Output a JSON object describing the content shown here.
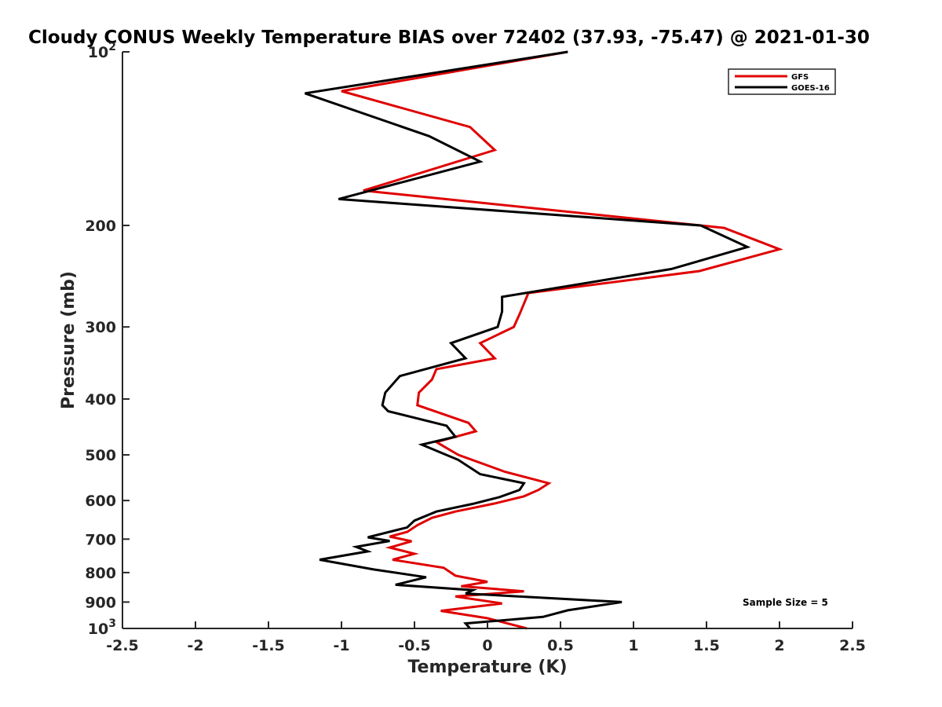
{
  "chart_data": {
    "type": "line",
    "title": "Cloudy CONUS Weekly Temperature BIAS over 72402 (37.93, -75.47) @ 2021-01-30",
    "xlabel": "Temperature (K)",
    "ylabel": "Pressure (mb)",
    "xlim": [
      -2.5,
      2.5
    ],
    "ylim": [
      100,
      1000
    ],
    "y_scale": "log",
    "y_reversed": true,
    "grid": false,
    "legend_position": "top-right",
    "x_ticks": [
      -2.5,
      -2,
      -1.5,
      -1,
      -0.5,
      0,
      0.5,
      1,
      1.5,
      2,
      2.5
    ],
    "x_tick_labels": [
      "-2.5",
      "-2",
      "-1.5",
      "-1",
      "-0.5",
      "0",
      "0.5",
      "1",
      "1.5",
      "2",
      "2.5"
    ],
    "y_ticks": [
      100,
      200,
      300,
      400,
      500,
      600,
      700,
      800,
      900,
      1000
    ],
    "y_tick_labels": [
      {
        "base": "10",
        "exp": "2"
      },
      {
        "base": "200",
        "exp": ""
      },
      {
        "base": "300",
        "exp": ""
      },
      {
        "base": "400",
        "exp": ""
      },
      {
        "base": "500",
        "exp": ""
      },
      {
        "base": "600",
        "exp": ""
      },
      {
        "base": "700",
        "exp": ""
      },
      {
        "base": "800",
        "exp": ""
      },
      {
        "base": "900",
        "exp": ""
      },
      {
        "base": "10",
        "exp": "3"
      }
    ],
    "annotation": "Sample Size = 5",
    "series": [
      {
        "name": "GFS",
        "color": "#e00000",
        "points": [
          [
            0.55,
            100
          ],
          [
            -1.0,
            117
          ],
          [
            -0.12,
            135
          ],
          [
            0.05,
            148
          ],
          [
            -0.85,
            174
          ],
          [
            1.62,
            202
          ],
          [
            2.0,
            220
          ],
          [
            1.45,
            240
          ],
          [
            0.28,
            262
          ],
          [
            0.22,
            285
          ],
          [
            0.18,
            300
          ],
          [
            -0.05,
            320
          ],
          [
            0.05,
            340
          ],
          [
            -0.35,
            355
          ],
          [
            -0.38,
            370
          ],
          [
            -0.47,
            390
          ],
          [
            -0.48,
            410
          ],
          [
            -0.13,
            440
          ],
          [
            -0.08,
            455
          ],
          [
            -0.35,
            475
          ],
          [
            -0.2,
            500
          ],
          [
            0.12,
            535
          ],
          [
            0.42,
            560
          ],
          [
            0.35,
            575
          ],
          [
            0.25,
            590
          ],
          [
            0.05,
            607
          ],
          [
            -0.22,
            627
          ],
          [
            -0.38,
            643
          ],
          [
            -0.48,
            662
          ],
          [
            -0.55,
            680
          ],
          [
            -0.67,
            693
          ],
          [
            -0.52,
            706
          ],
          [
            -0.67,
            724
          ],
          [
            -0.5,
            742
          ],
          [
            -0.65,
            760
          ],
          [
            -0.3,
            785
          ],
          [
            -0.22,
            810
          ],
          [
            0.0,
            830
          ],
          [
            -0.18,
            845
          ],
          [
            0.25,
            862
          ],
          [
            -0.22,
            880
          ],
          [
            0.1,
            905
          ],
          [
            -0.32,
            932
          ],
          [
            0.0,
            960
          ],
          [
            0.27,
            1000
          ]
        ]
      },
      {
        "name": "GOES-16",
        "color": "#000000",
        "points": [
          [
            0.55,
            100
          ],
          [
            -1.25,
            118
          ],
          [
            -0.4,
            140
          ],
          [
            -0.05,
            155
          ],
          [
            -1.02,
            180
          ],
          [
            1.46,
            200
          ],
          [
            1.78,
            218
          ],
          [
            1.26,
            238
          ],
          [
            0.1,
            266
          ],
          [
            0.1,
            282
          ],
          [
            0.07,
            300
          ],
          [
            -0.25,
            320
          ],
          [
            -0.15,
            340
          ],
          [
            -0.6,
            365
          ],
          [
            -0.7,
            390
          ],
          [
            -0.72,
            410
          ],
          [
            -0.68,
            420
          ],
          [
            -0.28,
            445
          ],
          [
            -0.22,
            465
          ],
          [
            -0.45,
            480
          ],
          [
            -0.2,
            510
          ],
          [
            -0.05,
            540
          ],
          [
            0.25,
            560
          ],
          [
            0.22,
            575
          ],
          [
            0.08,
            592
          ],
          [
            -0.1,
            608
          ],
          [
            -0.35,
            627
          ],
          [
            -0.5,
            650
          ],
          [
            -0.55,
            668
          ],
          [
            -0.82,
            695
          ],
          [
            -0.67,
            705
          ],
          [
            -0.9,
            722
          ],
          [
            -0.82,
            735
          ],
          [
            -1.15,
            760
          ],
          [
            -0.78,
            790
          ],
          [
            -0.42,
            815
          ],
          [
            -0.63,
            840
          ],
          [
            -0.1,
            858
          ],
          [
            -0.15,
            870
          ],
          [
            0.92,
            900
          ],
          [
            0.55,
            930
          ],
          [
            0.38,
            955
          ],
          [
            -0.15,
            980
          ],
          [
            -0.12,
            1000
          ]
        ]
      }
    ]
  }
}
